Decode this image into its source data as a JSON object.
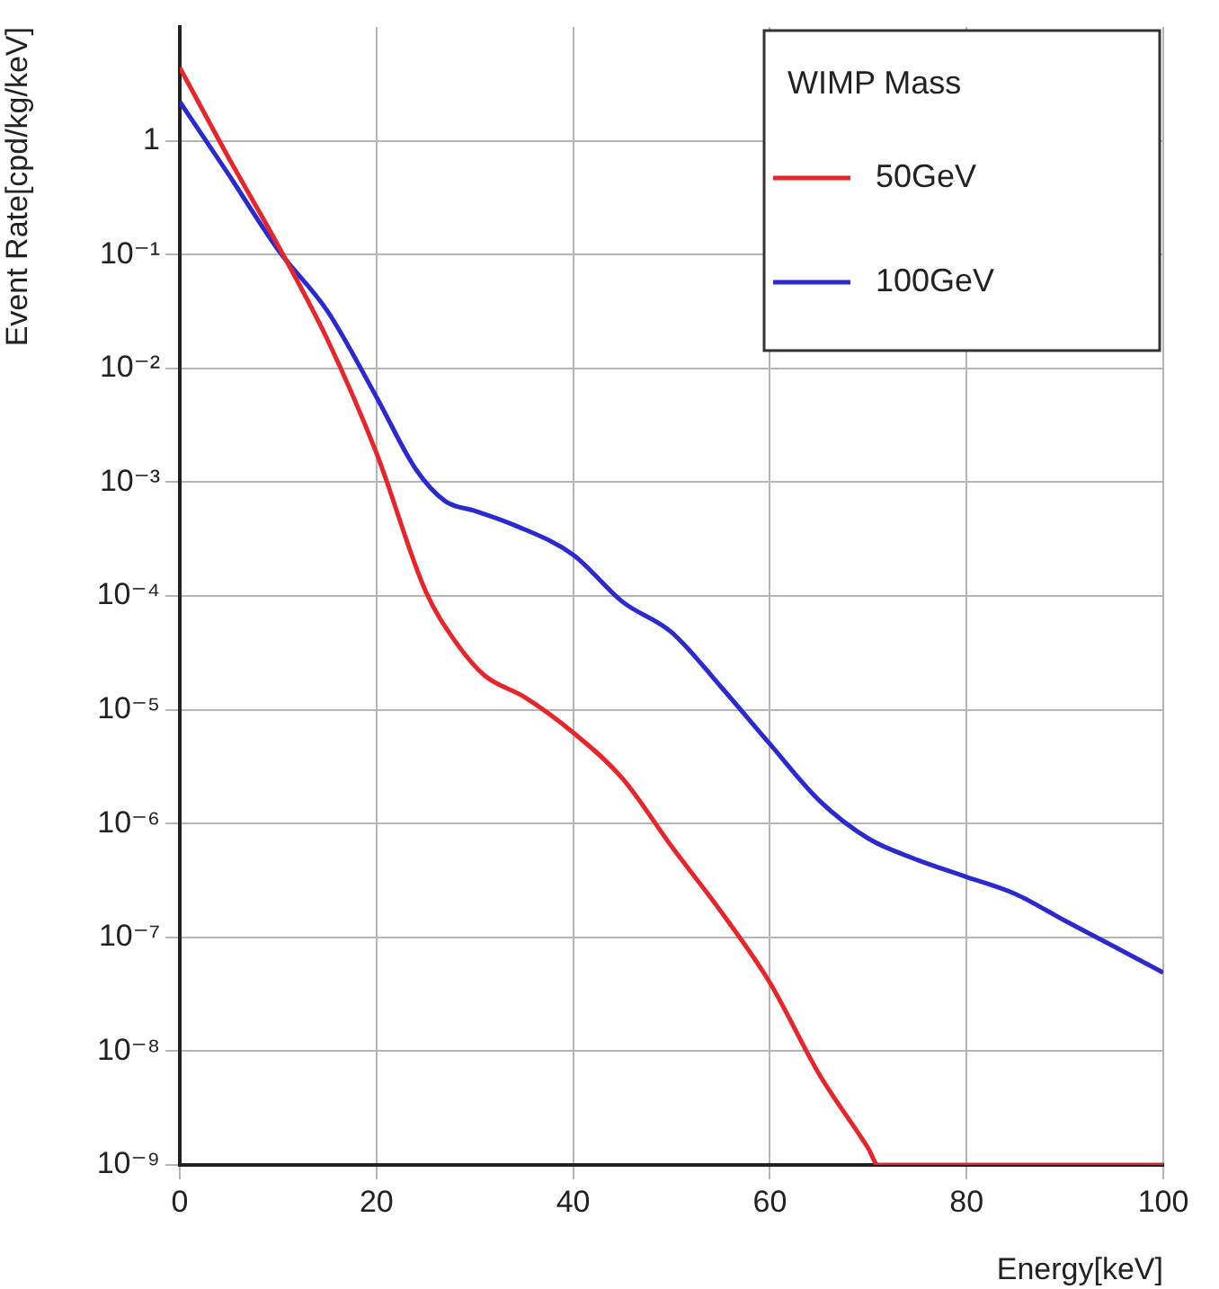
{
  "chart_data": {
    "type": "line",
    "xlabel": "Energy[keV]",
    "ylabel": "Event Rate[cpd/kg/keV]",
    "legend_title": "WIMP Mass",
    "legend": "top right",
    "log": "y",
    "grid": true,
    "marker": "none",
    "line_style": "solid",
    "xlim": [
      0,
      100
    ],
    "xticks": [
      0,
      20,
      40,
      60,
      80,
      100
    ],
    "ylim": [
      1e-09,
      10
    ],
    "yticks": [
      {
        "value": 1e-09,
        "label": "10⁻⁹"
      },
      {
        "value": 1e-08,
        "label": "10⁻⁸"
      },
      {
        "value": 1e-07,
        "label": "10⁻⁷"
      },
      {
        "value": 1e-06,
        "label": "10⁻⁶"
      },
      {
        "value": 1e-05,
        "label": "10⁻⁵"
      },
      {
        "value": 0.0001,
        "label": "10⁻⁴"
      },
      {
        "value": 0.001,
        "label": "10⁻³"
      },
      {
        "value": 0.01,
        "label": "10⁻²"
      },
      {
        "value": 0.1,
        "label": "10⁻¹"
      },
      1
    ],
    "series": [
      {
        "name": "50GeV",
        "color": "#e8252b",
        "x": [
          0,
          5,
          10,
          15,
          20,
          25,
          28,
          31,
          35,
          40,
          45,
          50,
          55,
          60,
          65,
          70,
          71,
          100
        ],
        "values": [
          4.4,
          0.7,
          0.12,
          0.018,
          0.0018,
          0.00011,
          4e-05,
          2e-05,
          1.3e-05,
          6.3e-06,
          2.5e-06,
          6.3e-07,
          1.7e-07,
          4e-08,
          6.3e-09,
          1.4e-09,
          1e-09,
          1e-09
        ]
      },
      {
        "name": "100GeV",
        "color": "#2a2ad0",
        "x": [
          0,
          5,
          10,
          15,
          20,
          24,
          27,
          30,
          34,
          40,
          45,
          50,
          55,
          60,
          65,
          70,
          75,
          80,
          85,
          90,
          95,
          100
        ],
        "values": [
          2.2,
          0.5,
          0.11,
          0.032,
          0.0056,
          0.0013,
          0.00068,
          0.00056,
          0.00042,
          0.00023,
          8.9e-05,
          4.8e-05,
          1.6e-05,
          5e-06,
          1.6e-06,
          7.4e-07,
          4.8e-07,
          3.4e-07,
          2.4e-07,
          1.4e-07,
          8.3e-08,
          4.9e-08
        ]
      }
    ]
  }
}
